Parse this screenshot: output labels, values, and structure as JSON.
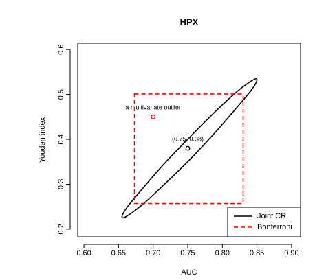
{
  "chart_data": {
    "type": "scatter",
    "title": "HPX",
    "x_label": "AUC",
    "y_label": "Youden index",
    "xlim": [
      0.591,
      0.913
    ],
    "ylim": [
      0.183,
      0.614
    ],
    "xticks": [
      {
        "value": 0.6,
        "label": "0.60"
      },
      {
        "value": 0.65,
        "label": "0.65"
      },
      {
        "value": 0.7,
        "label": "0.70"
      },
      {
        "value": 0.75,
        "label": "0.75"
      },
      {
        "value": 0.8,
        "label": "0.80"
      },
      {
        "value": 0.85,
        "label": "0.85"
      },
      {
        "value": 0.9,
        "label": "0.90"
      }
    ],
    "yticks": [
      0.2,
      0.3,
      0.4,
      0.5,
      0.6
    ],
    "series": [
      {
        "name": "Joint CR",
        "color": "#000000",
        "kind": "ellipse",
        "x": [
          0.85,
          0.843,
          0.821,
          0.79,
          0.753,
          0.715,
          0.684,
          0.662,
          0.655,
          0.662,
          0.684,
          0.715,
          0.753,
          0.79,
          0.821,
          0.843
        ],
        "y": [
          0.533,
          0.512,
          0.471,
          0.416,
          0.355,
          0.298,
          0.254,
          0.229,
          0.227,
          0.248,
          0.289,
          0.344,
          0.405,
          0.462,
          0.506,
          0.531
        ]
      },
      {
        "name": "Bonferroni",
        "color": "#ff0000",
        "kind": "rectangle",
        "x": [
          0.673,
          0.83
        ],
        "y": [
          0.257,
          0.501
        ]
      }
    ],
    "points": [
      {
        "x": 0.75,
        "y": 0.38,
        "color": "#000000",
        "label": "(0.75, 0.38)"
      },
      {
        "x": 0.7,
        "y": 0.45,
        "color": "#ff0000",
        "label": "a multivariate outlier"
      }
    ],
    "legend": "bottomright"
  }
}
